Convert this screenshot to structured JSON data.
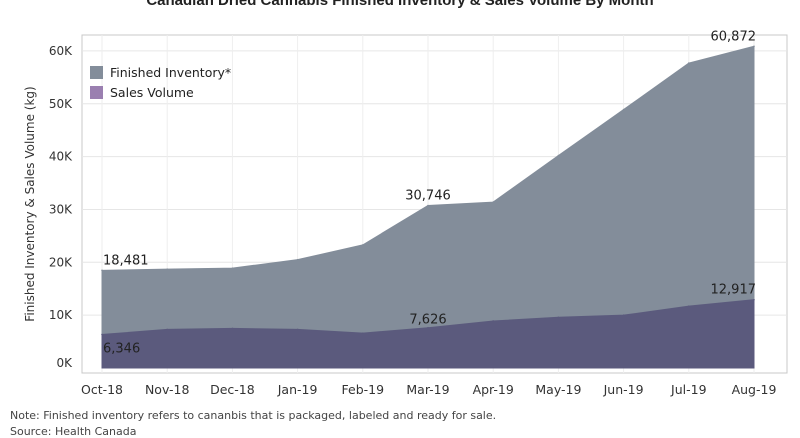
{
  "chart_data": {
    "type": "area",
    "title": "Canadian Dried Cannabis Finished Inventory & Sales Volume By Month",
    "xlabel": "",
    "ylabel": "Finished Inventory & Sales Volume (kg)",
    "ylim": [
      0,
      65000
    ],
    "yticks": [
      0,
      10000,
      20000,
      30000,
      40000,
      50000,
      60000
    ],
    "ytick_labels": [
      "0K",
      "10K",
      "20K",
      "30K",
      "40K",
      "50K",
      "60K"
    ],
    "categories": [
      "Oct-18",
      "Nov-18",
      "Dec-18",
      "Jan-19",
      "Feb-19",
      "Mar-19",
      "Apr-19",
      "May-19",
      "Jun-19",
      "Jul-19",
      "Aug-19"
    ],
    "grid": true,
    "legend_position": "top-left",
    "series": [
      {
        "name": "Finished Inventory*",
        "color": "#838d9a",
        "values": [
          18481,
          18700,
          18900,
          20500,
          23300,
          30746,
          31400,
          40200,
          48900,
          57700,
          60872
        ],
        "data_labels": [
          {
            "index": 0,
            "text": "18,481"
          },
          {
            "index": 5,
            "text": "30,746"
          },
          {
            "index": 10,
            "text": "60,872"
          }
        ]
      },
      {
        "name": "Sales Volume",
        "color": "#5b5a7d",
        "legend_color": "#9a7fb0",
        "values": [
          6346,
          7300,
          7500,
          7300,
          6600,
          7626,
          8900,
          9600,
          10000,
          11700,
          12917
        ],
        "data_labels": [
          {
            "index": 0,
            "text": "6,346"
          },
          {
            "index": 5,
            "text": "7,626"
          },
          {
            "index": 10,
            "text": "12,917"
          }
        ]
      }
    ],
    "note": "Note: Finished inventory refers to cananbis that is packaged, labeled and ready for sale.",
    "source": "Source: Health Canada"
  }
}
